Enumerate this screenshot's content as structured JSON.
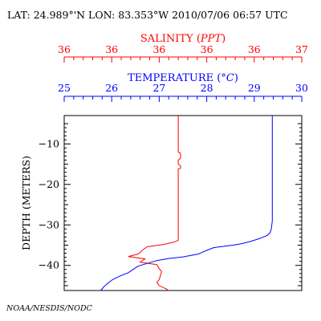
{
  "header": {
    "text": "LAT: 24.989°'N LON: 83.353°W 2010/07/06 06:57 UTC"
  },
  "credit": "NOAA/NESDIS/NODC",
  "colors": {
    "salinity": "#ff0000",
    "temperature": "#0000ff",
    "frame": "#000000"
  },
  "chart_data": {
    "type": "line",
    "title": "",
    "grid": false,
    "y_axis": {
      "label": "DEPTH (METERS)",
      "range": [
        -46.2,
        -3
      ],
      "ticks": [
        -10,
        -20,
        -30,
        -40
      ],
      "tick_labels": [
        "−10",
        "−20",
        "−30",
        "−40"
      ]
    },
    "x_axes": [
      {
        "id": "salinity",
        "label_prefix": "SALINITY (",
        "label_unit": "PPT",
        "label_suffix": ")",
        "color": "#ff0000",
        "range": [
          36.0,
          37.0
        ],
        "ticks": [
          36.0,
          36.2,
          36.4,
          36.6,
          36.8,
          37.0
        ],
        "tick_labels": [
          "36",
          "36",
          "36",
          "36",
          "36",
          "37"
        ]
      },
      {
        "id": "temperature",
        "label_prefix": "TEMPERATURE (",
        "label_unit": "°C",
        "label_suffix": ")",
        "color": "#0000ff",
        "range": [
          25,
          30
        ],
        "ticks": [
          25,
          26,
          27,
          28,
          29,
          30
        ],
        "tick_labels": [
          "25",
          "26",
          "27",
          "28",
          "29",
          "30"
        ]
      }
    ],
    "series": [
      {
        "axis": "salinity",
        "color": "#ff0000",
        "points": [
          [
            36.48,
            -3
          ],
          [
            36.48,
            -12
          ],
          [
            36.49,
            -12.3
          ],
          [
            36.49,
            -13.5
          ],
          [
            36.48,
            -14
          ],
          [
            36.48,
            -15
          ],
          [
            36.49,
            -15.4
          ],
          [
            36.49,
            -16
          ],
          [
            36.48,
            -16.2
          ],
          [
            36.48,
            -33.8
          ],
          [
            36.46,
            -34.3
          ],
          [
            36.42,
            -34.8
          ],
          [
            36.35,
            -35.4
          ],
          [
            36.33,
            -36.2
          ],
          [
            36.32,
            -36.8
          ],
          [
            36.31,
            -37.2
          ],
          [
            36.27,
            -37.8
          ],
          [
            36.34,
            -38.4
          ],
          [
            36.32,
            -39.2
          ],
          [
            36.39,
            -39.8
          ],
          [
            36.4,
            -40.8
          ],
          [
            36.41,
            -41.5
          ],
          [
            36.4,
            -43.5
          ],
          [
            36.39,
            -44.2
          ],
          [
            36.4,
            -45
          ],
          [
            36.43,
            -45.8
          ],
          [
            36.44,
            -46.2
          ]
        ]
      },
      {
        "axis": "temperature",
        "color": "#0000ff",
        "points": [
          [
            29.38,
            -3
          ],
          [
            29.38,
            -10
          ],
          [
            29.38,
            -20
          ],
          [
            29.38,
            -29
          ],
          [
            29.37,
            -30
          ],
          [
            29.36,
            -31
          ],
          [
            29.33,
            -32
          ],
          [
            29.27,
            -32.6
          ],
          [
            29.13,
            -33.3
          ],
          [
            28.95,
            -34
          ],
          [
            28.75,
            -34.6
          ],
          [
            28.55,
            -35
          ],
          [
            28.35,
            -35.3
          ],
          [
            28.15,
            -35.6
          ],
          [
            28.0,
            -36.3
          ],
          [
            27.82,
            -37.2
          ],
          [
            27.5,
            -37.9
          ],
          [
            27.2,
            -38.3
          ],
          [
            26.95,
            -38.8
          ],
          [
            26.75,
            -39.5
          ],
          [
            26.55,
            -40.2
          ],
          [
            26.45,
            -41
          ],
          [
            26.35,
            -41.8
          ],
          [
            26.18,
            -42.6
          ],
          [
            26.02,
            -43.5
          ],
          [
            25.93,
            -44.3
          ],
          [
            25.84,
            -45.2
          ],
          [
            25.77,
            -46.2
          ]
        ]
      }
    ]
  }
}
